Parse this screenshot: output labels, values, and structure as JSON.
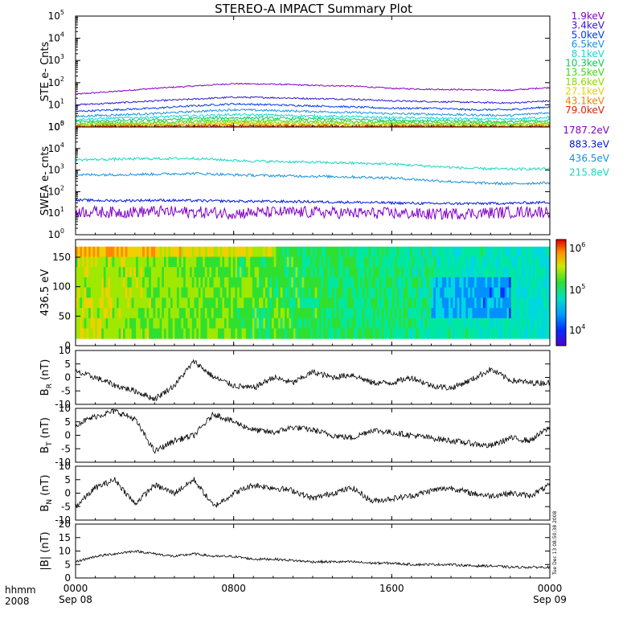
{
  "title": "STEREO-A IMPACT Summary Plot",
  "side_stamp": "Tue Dec 13 08:50:38 2008",
  "time_axis": {
    "corner_label_1": "hhmm",
    "corner_label_2": "2008",
    "ticks": [
      {
        "hour": 0,
        "label": "0000",
        "date": "Sep 08"
      },
      {
        "hour": 8,
        "label": "0800",
        "date": ""
      },
      {
        "hour": 16,
        "label": "1600",
        "date": ""
      },
      {
        "hour": 24,
        "label": "0000",
        "date": "Sep 09"
      }
    ],
    "range_hours": [
      0,
      24
    ]
  },
  "chart_data": [
    {
      "type": "line",
      "id": "ste",
      "ylabel": "STE e- Cnts",
      "yscale": "log",
      "ylim_exp": [
        0,
        5
      ],
      "ytick_labels": [
        "10",
        "10",
        "10",
        "10",
        "10",
        "10"
      ],
      "ytick_exps": [
        "0",
        "1",
        "2",
        "3",
        "4",
        "5"
      ],
      "x_hours": [
        0,
        2,
        4,
        6,
        8,
        10,
        12,
        14,
        16,
        18,
        20,
        22,
        24
      ],
      "series": [
        {
          "name": "1.9keV",
          "color": "#8000c8",
          "values": [
            30,
            40,
            55,
            70,
            90,
            85,
            75,
            70,
            55,
            50,
            48,
            45,
            60
          ]
        },
        {
          "name": "3.4keV",
          "color": "#3018d8",
          "values": [
            10,
            12,
            15,
            18,
            22,
            21,
            19,
            18,
            15,
            14,
            13,
            12,
            15
          ]
        },
        {
          "name": "5.0keV",
          "color": "#0038f0",
          "values": [
            5,
            6,
            7,
            9,
            11,
            10,
            9,
            8,
            7,
            7,
            6,
            6,
            8
          ]
        },
        {
          "name": "6.5keV",
          "color": "#1890e0",
          "values": [
            3,
            3.5,
            4,
            5,
            6,
            5.5,
            5,
            4.5,
            4,
            3.8,
            3.5,
            3.3,
            4.5
          ]
        },
        {
          "name": "8.1keV",
          "color": "#18d8d8",
          "values": [
            2.2,
            2.5,
            2.8,
            3.2,
            3.6,
            3.4,
            3.1,
            2.9,
            2.6,
            2.5,
            2.3,
            2.2,
            2.8
          ]
        },
        {
          "name": "10.3keV",
          "color": "#10c858",
          "values": [
            1.7,
            1.9,
            2.1,
            2.4,
            2.6,
            2.5,
            2.3,
            2.2,
            2.0,
            1.9,
            1.8,
            1.7,
            2.0
          ]
        },
        {
          "name": "13.5keV",
          "color": "#40d810",
          "values": [
            1.4,
            1.5,
            1.6,
            1.8,
            2.0,
            1.9,
            1.8,
            1.7,
            1.6,
            1.5,
            1.45,
            1.4,
            1.6
          ]
        },
        {
          "name": "18.6keV",
          "color": "#90d800",
          "values": [
            1.2,
            1.3,
            1.35,
            1.45,
            1.6,
            1.55,
            1.45,
            1.4,
            1.35,
            1.3,
            1.25,
            1.2,
            1.3
          ]
        },
        {
          "name": "27.1keV",
          "color": "#e8d000",
          "values": [
            1.1,
            1.15,
            1.2,
            1.25,
            1.35,
            1.3,
            1.25,
            1.2,
            1.15,
            1.12,
            1.1,
            1.08,
            1.15
          ]
        },
        {
          "name": "43.1keV",
          "color": "#f08000",
          "values": [
            1.05,
            1.08,
            1.1,
            1.12,
            1.15,
            1.13,
            1.1,
            1.08,
            1.06,
            1.05,
            1.04,
            1.03,
            1.06
          ]
        },
        {
          "name": "79.0keV",
          "color": "#e02000",
          "values": [
            1.0,
            1.02,
            1.03,
            1.04,
            1.05,
            1.04,
            1.03,
            1.02,
            1.01,
            1.0,
            1.0,
            1.0,
            1.01
          ]
        }
      ]
    },
    {
      "type": "line",
      "id": "swea",
      "ylabel": "SWEA e- cnts",
      "yscale": "log",
      "ylim_exp": [
        0,
        5
      ],
      "ytick_labels": [
        "10",
        "10",
        "10",
        "10",
        "10",
        "10"
      ],
      "ytick_exps": [
        "0",
        "1",
        "2",
        "3",
        "4",
        "5"
      ],
      "x_hours": [
        0,
        2,
        4,
        6,
        8,
        10,
        12,
        14,
        16,
        18,
        20,
        22,
        24
      ],
      "series": [
        {
          "name": "1787.2eV",
          "color": "#8000c8",
          "values": [
            12,
            11,
            12,
            11,
            10,
            11,
            11,
            10,
            10,
            9,
            10,
            11,
            12
          ]
        },
        {
          "name": "883.3eV",
          "color": "#0018d8",
          "values": [
            40,
            38,
            40,
            38,
            36,
            35,
            34,
            32,
            30,
            28,
            28,
            29,
            32
          ]
        },
        {
          "name": "436.5eV",
          "color": "#1890e0",
          "values": [
            600,
            620,
            650,
            700,
            600,
            550,
            520,
            480,
            430,
            330,
            260,
            230,
            260
          ]
        },
        {
          "name": "215.8eV",
          "color": "#18d8c0",
          "values": [
            3000,
            3200,
            3400,
            3500,
            2800,
            2500,
            2300,
            2100,
            1900,
            1500,
            1200,
            1100,
            1150
          ]
        }
      ]
    },
    {
      "type": "heatmap",
      "id": "pad",
      "ylabel": "436.5 eV",
      "ylim": [
        0,
        180
      ],
      "ytick_values": [
        "0",
        "50",
        "100",
        "150"
      ],
      "colorbar": {
        "scale": "log",
        "tick_labels": [
          "10",
          "10",
          "10"
        ],
        "tick_exps": [
          "6",
          "5",
          "4"
        ]
      }
    },
    {
      "type": "line",
      "id": "br",
      "ylabel_main": "B",
      "ylabel_sub": "R",
      "ylabel_unit": " (nT)",
      "ylim": [
        -10,
        10
      ],
      "ytick_values": [
        "-10",
        "-5",
        "0",
        "5",
        "10"
      ],
      "x_hours": [
        0,
        1,
        2,
        3,
        4,
        5,
        6,
        7,
        8,
        9,
        10,
        11,
        12,
        13,
        14,
        15,
        16,
        17,
        18,
        19,
        20,
        21,
        22,
        23,
        24
      ],
      "values": [
        2,
        0,
        -3,
        -5,
        -8,
        -3,
        6,
        0,
        -3,
        -4,
        0,
        -2,
        2,
        0,
        1,
        -2,
        -2,
        0,
        -3,
        -4,
        -1,
        3,
        -1,
        -2,
        -2
      ]
    },
    {
      "type": "line",
      "id": "bt",
      "ylabel_main": "B",
      "ylabel_sub": "T",
      "ylabel_unit": " (nT)",
      "ylim": [
        -10,
        10
      ],
      "ytick_values": [
        "-10",
        "-5",
        "0",
        "5",
        "10"
      ],
      "x_hours": [
        0,
        1,
        2,
        3,
        4,
        5,
        6,
        7,
        8,
        9,
        10,
        11,
        12,
        13,
        14,
        15,
        16,
        17,
        18,
        19,
        20,
        21,
        22,
        23,
        24
      ],
      "values": [
        4,
        7,
        9,
        6,
        -6,
        -2,
        0,
        8,
        5,
        2,
        1,
        3,
        2,
        0,
        -1,
        2,
        1,
        0,
        -1,
        -2,
        -3,
        -4,
        -1,
        -2,
        3
      ]
    },
    {
      "type": "line",
      "id": "bn",
      "ylabel_main": "B",
      "ylabel_sub": "N",
      "ylabel_unit": " (nT)",
      "ylim": [
        -10,
        10
      ],
      "ytick_values": [
        "-10",
        "-5",
        "0",
        "5",
        "10"
      ],
      "x_hours": [
        0,
        1,
        2,
        3,
        4,
        5,
        6,
        7,
        8,
        9,
        10,
        11,
        12,
        13,
        14,
        15,
        16,
        17,
        18,
        19,
        20,
        21,
        22,
        23,
        24
      ],
      "values": [
        -5,
        2,
        5,
        -4,
        3,
        0,
        5,
        -5,
        0,
        3,
        2,
        1,
        -2,
        0,
        2,
        -3,
        -2,
        -1,
        1,
        2,
        0,
        -1,
        0,
        -1,
        3
      ]
    },
    {
      "type": "line",
      "id": "bmag",
      "ylabel": "|B| (nT)",
      "ylim": [
        0,
        20
      ],
      "ytick_values": [
        "0",
        "5",
        "10",
        "15",
        "20"
      ],
      "x_hours": [
        0,
        1,
        2,
        3,
        4,
        5,
        6,
        7,
        8,
        9,
        10,
        11,
        12,
        13,
        14,
        15,
        16,
        17,
        18,
        19,
        20,
        21,
        22,
        23,
        24
      ],
      "values": [
        6,
        8,
        9,
        10,
        9,
        8,
        9,
        8,
        8,
        7,
        7,
        6.5,
        6,
        6,
        6,
        5.5,
        5.5,
        5,
        5,
        5,
        4.5,
        4.5,
        4,
        4,
        4
      ]
    }
  ]
}
